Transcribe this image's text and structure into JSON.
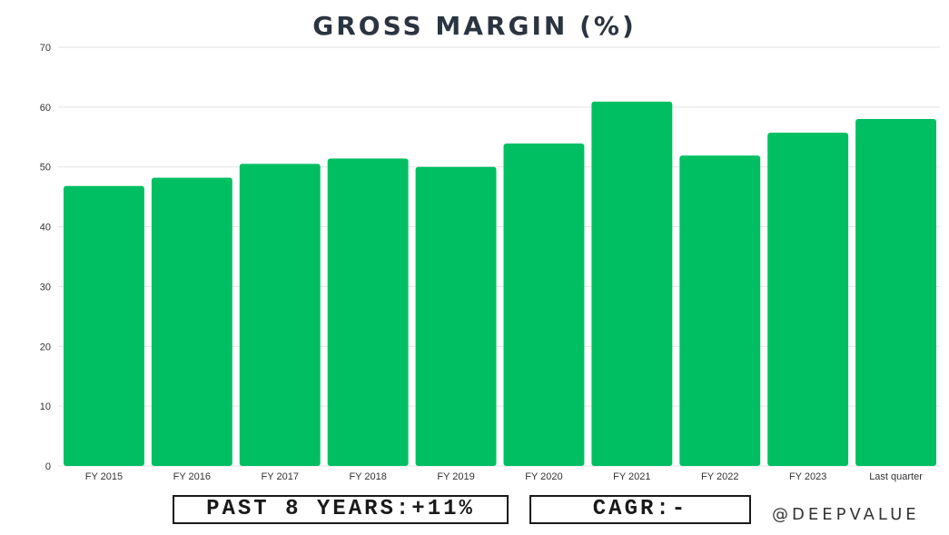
{
  "chart_data": {
    "type": "bar",
    "title": "GROSS MARGIN (%)",
    "xlabel": "",
    "ylabel": "",
    "categories": [
      "FY 2015",
      "FY 2016",
      "FY 2017",
      "FY 2018",
      "FY 2019",
      "FY 2020",
      "FY 2021",
      "FY 2022",
      "FY 2023",
      "Last quarter"
    ],
    "values": [
      46.8,
      48.2,
      50.5,
      51.4,
      50.0,
      53.9,
      60.9,
      51.9,
      55.7,
      58.0
    ],
    "ylim": [
      0,
      70
    ],
    "yticks": [
      0,
      10,
      20,
      30,
      40,
      50,
      60,
      70
    ],
    "grid": true,
    "legend": "none",
    "bar_color": "#00bf63",
    "grid_color": "#e3e3e3"
  },
  "stats": {
    "past_years": "PAST 8 YEARS:+11%",
    "cagr": "CAGR:-"
  },
  "watermark": "@DEEPVALUE"
}
